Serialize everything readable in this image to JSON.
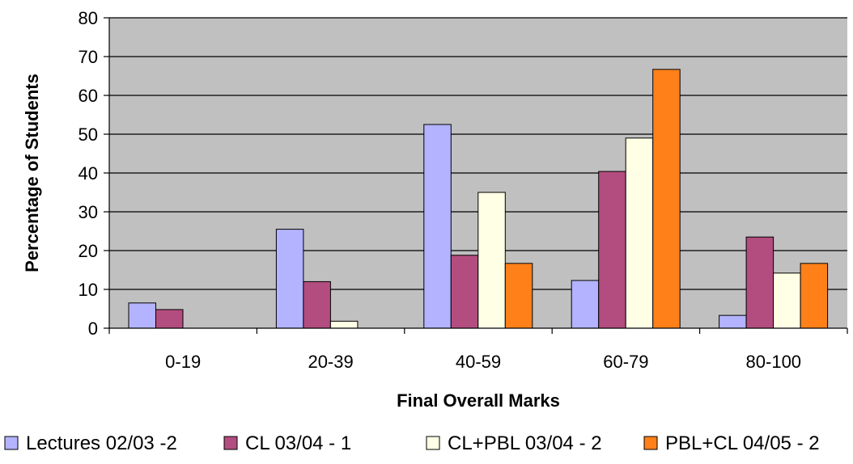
{
  "chart_data": {
    "type": "bar",
    "title": "",
    "xlabel": "Final Overall Marks",
    "ylabel": "Percentage of Students",
    "ylim": [
      0,
      80
    ],
    "yticks": [
      0,
      10,
      20,
      30,
      40,
      50,
      60,
      70,
      80
    ],
    "grid": true,
    "legend_position": "bottom",
    "categories": [
      "0-19",
      "20-39",
      "40-59",
      "60-79",
      "80-100"
    ],
    "series": [
      {
        "name": "Lectures 02/03 -2",
        "color": "#b3b3ff",
        "values": [
          6.5,
          25.5,
          52.5,
          12.3,
          3.3
        ]
      },
      {
        "name": "CL 03/04 - 1",
        "color": "#b34d7f",
        "values": [
          4.8,
          12.0,
          18.8,
          40.4,
          23.5
        ]
      },
      {
        "name": "CL+PBL 03/04 - 2",
        "color": "#ffffe6",
        "values": [
          0,
          1.8,
          35.0,
          49.0,
          14.2
        ]
      },
      {
        "name": "PBL+CL 04/05 - 2",
        "color": "#ff8019",
        "values": [
          0,
          0,
          16.7,
          66.7,
          16.7
        ]
      }
    ]
  }
}
